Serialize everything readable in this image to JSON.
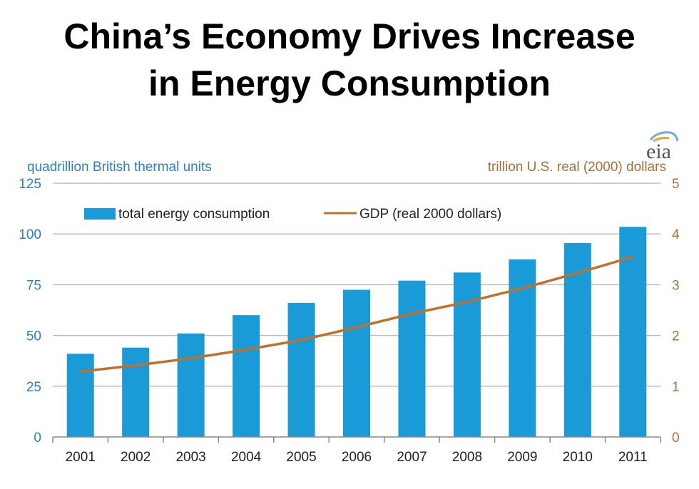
{
  "title": {
    "line1": "China’s Economy Drives Increase",
    "line2": "in Energy Consumption"
  },
  "logo": {
    "text": "eia",
    "icon": "eia-logo-icon"
  },
  "colors": {
    "bar": "#1a9ad6",
    "line": "#c0702a",
    "left_axis_text": "#2a7fc9",
    "right_axis_text": "#a8703a",
    "grid": "#bdbdbd"
  },
  "chart_data": {
    "type": "bar",
    "title": "China’s Economy Drives Increase in Energy Consumption",
    "categories": [
      "2001",
      "2002",
      "2003",
      "2004",
      "2005",
      "2006",
      "2007",
      "2008",
      "2009",
      "2010",
      "2011"
    ],
    "series": [
      {
        "name": "total energy consumption",
        "type": "bar",
        "axis": "left",
        "values": [
          41,
          44,
          51,
          60,
          66,
          72.5,
          77,
          81,
          87.5,
          95.5,
          103.5
        ]
      },
      {
        "name": "GDP (real 2000 dollars)",
        "type": "line",
        "axis": "right",
        "values": [
          1.29,
          1.41,
          1.55,
          1.72,
          1.91,
          2.16,
          2.43,
          2.66,
          2.93,
          3.23,
          3.55
        ]
      }
    ],
    "ylabel_left": "quadrillion British thermal units",
    "ylabel_right": "trillion U.S. real (2000) dollars",
    "ylim_left": [
      0,
      125
    ],
    "ylim_right": [
      0,
      5
    ],
    "yticks_left": [
      "0",
      "25",
      "50",
      "75",
      "100",
      "125"
    ],
    "yticks_right": [
      "0",
      "1",
      "2",
      "3",
      "4",
      "5"
    ],
    "grid": true,
    "legend": "top-left"
  }
}
